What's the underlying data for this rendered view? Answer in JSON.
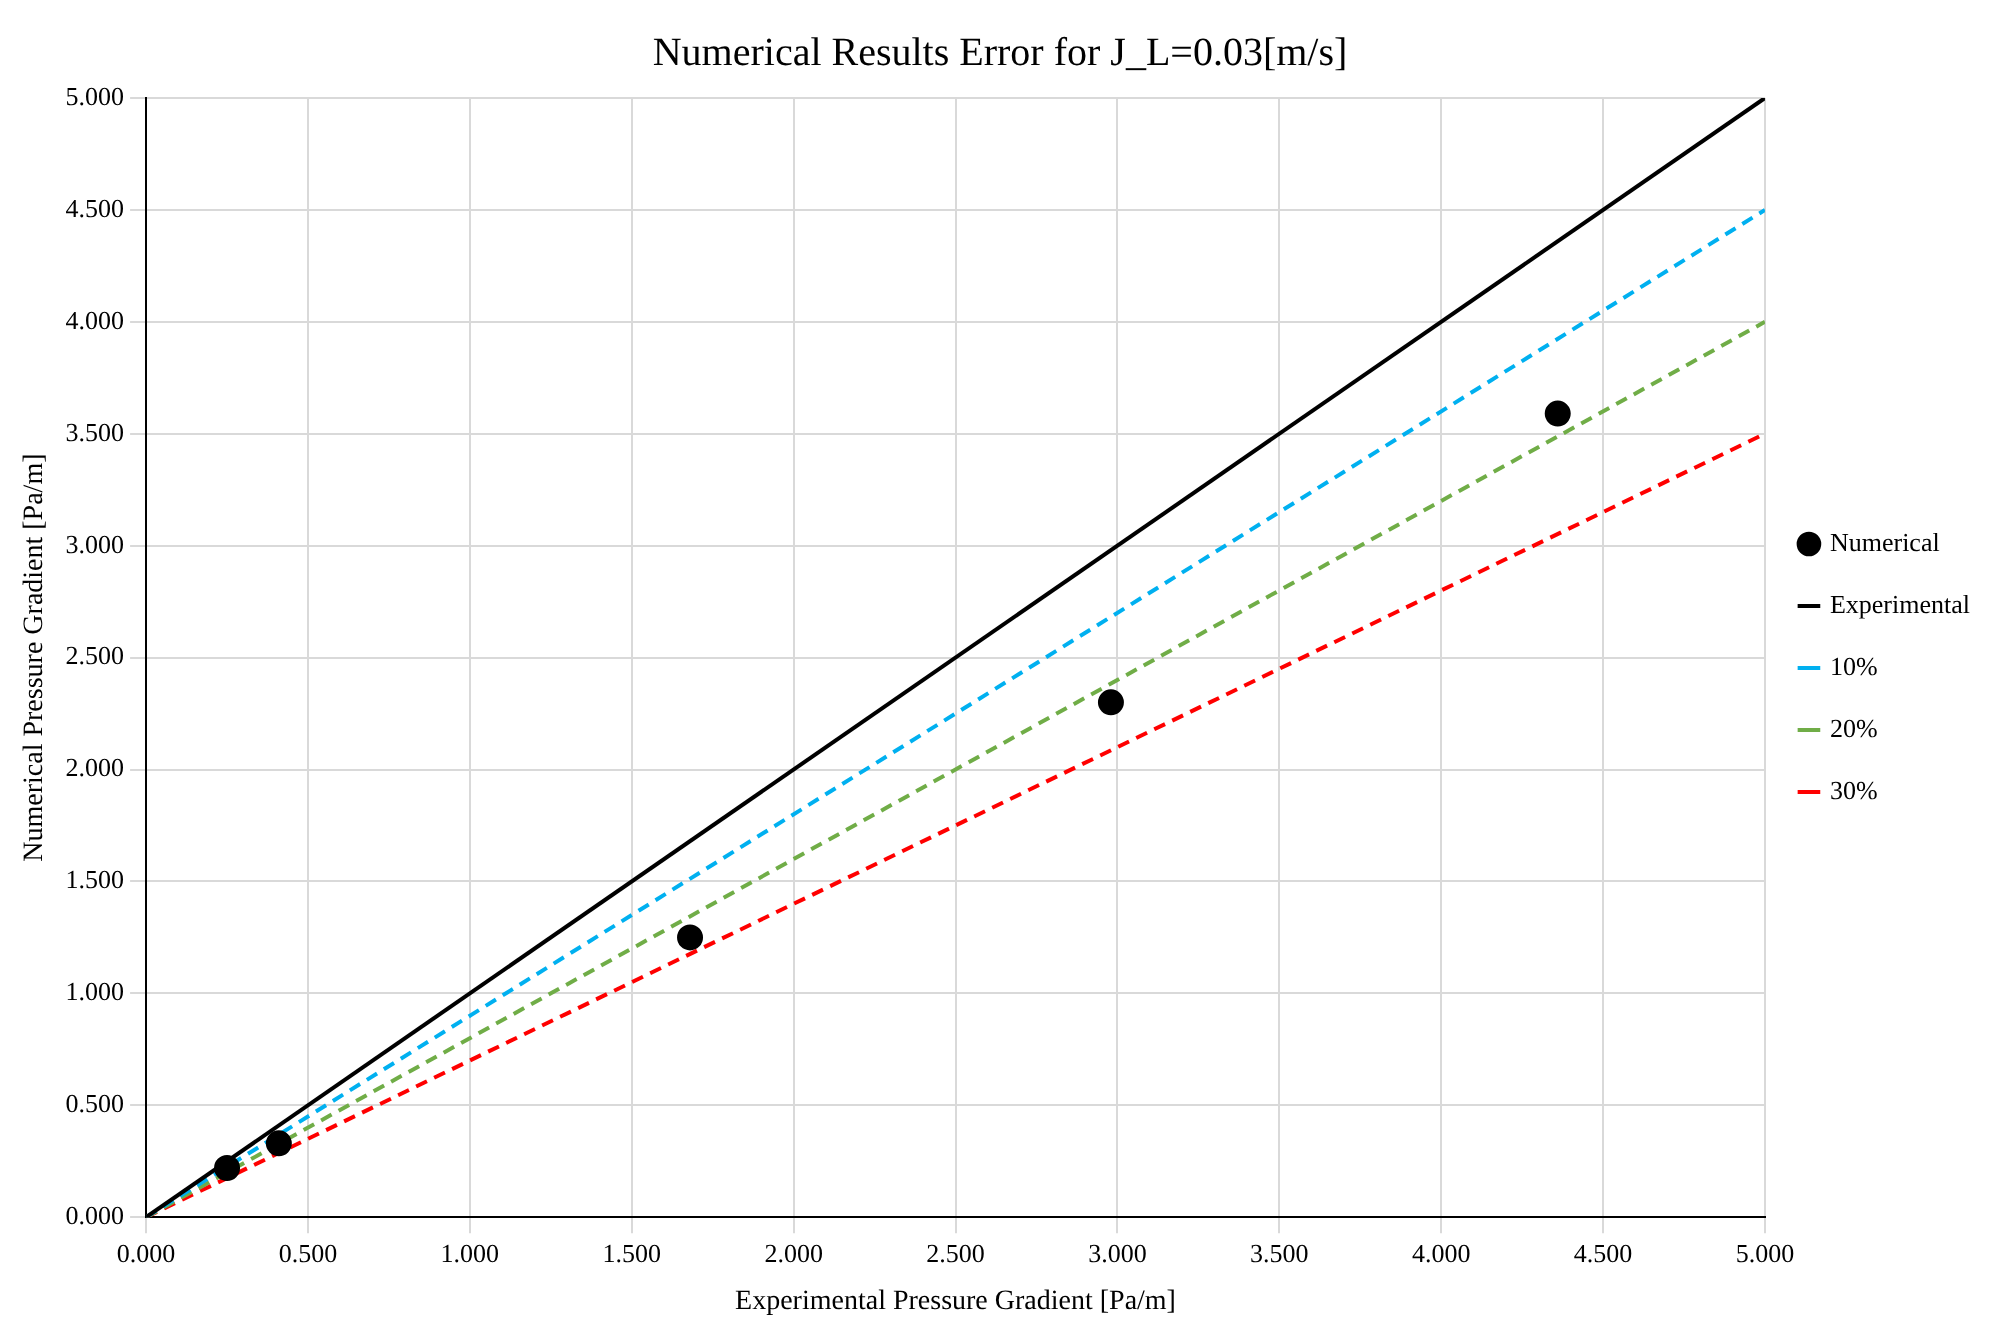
{
  "chart_data": {
    "type": "scatter",
    "title": "Numerical Results Error for J_L=0.03[m/s]",
    "xlabel": "Experimental Pressure Gradient [Pa/m]",
    "ylabel": "Numerical Pressure Gradient [Pa/m]",
    "xlim": [
      0,
      5
    ],
    "ylim": [
      0,
      5
    ],
    "xticks": [
      {
        "value": 0,
        "label": "0.000"
      },
      {
        "value": 0.5,
        "label": "0.500"
      },
      {
        "value": 1,
        "label": "1.000"
      },
      {
        "value": 1.5,
        "label": "1.500"
      },
      {
        "value": 2,
        "label": "2.000"
      },
      {
        "value": 2.5,
        "label": "2.500"
      },
      {
        "value": 3,
        "label": "3.000"
      },
      {
        "value": 3.5,
        "label": "3.500"
      },
      {
        "value": 4,
        "label": "4.000"
      },
      {
        "value": 4.5,
        "label": "4.500"
      },
      {
        "value": 5,
        "label": "5.000"
      }
    ],
    "yticks": [
      {
        "value": 0,
        "label": "0.000"
      },
      {
        "value": 0.5,
        "label": "0.500"
      },
      {
        "value": 1,
        "label": "1.000"
      },
      {
        "value": 1.5,
        "label": "1.500"
      },
      {
        "value": 2,
        "label": "2.000"
      },
      {
        "value": 2.5,
        "label": "2.500"
      },
      {
        "value": 3,
        "label": "3.000"
      },
      {
        "value": 3.5,
        "label": "3.500"
      },
      {
        "value": 4,
        "label": "4.000"
      },
      {
        "value": 4.5,
        "label": "4.500"
      },
      {
        "value": 5,
        "label": "5.000"
      }
    ],
    "grid": true,
    "legend": "right",
    "series": [
      {
        "name": "Numerical",
        "marker": "circle",
        "color": "#000000",
        "x": [
          0.25,
          0.41,
          1.68,
          2.98,
          4.36
        ],
        "values": [
          0.22,
          0.33,
          1.25,
          2.3,
          3.59
        ]
      },
      {
        "name": "Experimental",
        "type": "line",
        "marker": "none",
        "line_style": "solid",
        "color": "#000000",
        "x": [
          0,
          5
        ],
        "values": [
          0,
          5
        ]
      },
      {
        "name": "10%",
        "type": "line",
        "marker": "none",
        "line_style": "dashed",
        "color": "#00b0f0",
        "x": [
          0,
          5
        ],
        "values": [
          0,
          4.5
        ]
      },
      {
        "name": "20%",
        "type": "line",
        "marker": "none",
        "line_style": "dashed",
        "color": "#70ad47",
        "x": [
          0,
          5
        ],
        "values": [
          0,
          4
        ]
      },
      {
        "name": "30%",
        "type": "line",
        "marker": "none",
        "line_style": "dashed",
        "color": "#ff0000",
        "x": [
          0,
          5
        ],
        "values": [
          0,
          3.5
        ]
      }
    ]
  }
}
